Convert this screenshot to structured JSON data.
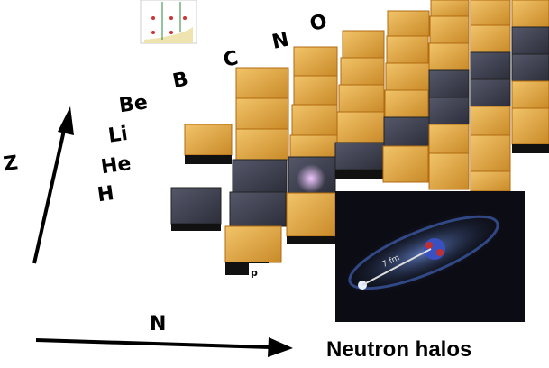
{
  "element_labels": [
    "B",
    "C",
    "N",
    "O"
  ],
  "row_labels": [
    "Be",
    "Li",
    "He",
    "H"
  ],
  "axes": {
    "vertical": "Z",
    "horizontal": "N"
  },
  "corner_label": "p",
  "inset": {
    "distance_label": "7 fm"
  },
  "caption": "Neutron halos"
}
